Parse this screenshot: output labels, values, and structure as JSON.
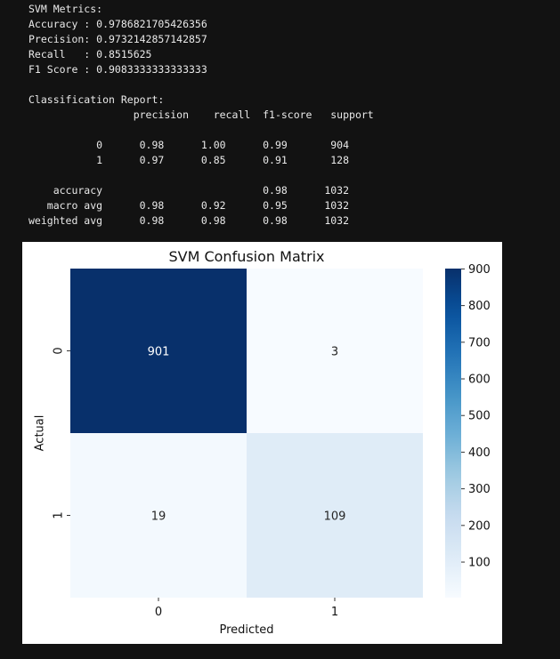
{
  "output": {
    "metrics_header": "SVM Metrics:",
    "metrics": [
      {
        "label": "Accuracy ",
        "value": "0.9786821705426356"
      },
      {
        "label": "Precision",
        "value": "0.9732142857142857"
      },
      {
        "label": "Recall   ",
        "value": "0.8515625"
      },
      {
        "label": "F1 Score ",
        "value": "0.9083333333333333"
      }
    ],
    "report_header": "Classification Report:",
    "report_columns": [
      "precision",
      "recall",
      "f1-score",
      "support"
    ],
    "report_rows": [
      {
        "label": "0",
        "precision": "0.98",
        "recall": "1.00",
        "f1": "0.99",
        "support": "904"
      },
      {
        "label": "1",
        "precision": "0.97",
        "recall": "0.85",
        "f1": "0.91",
        "support": "128"
      }
    ],
    "report_summary": [
      {
        "label": "accuracy",
        "precision": "",
        "recall": "",
        "f1": "0.98",
        "support": "1032"
      },
      {
        "label": "macro avg",
        "precision": "0.98",
        "recall": "0.92",
        "f1": "0.95",
        "support": "1032"
      },
      {
        "label": "weighted avg",
        "precision": "0.98",
        "recall": "0.98",
        "f1": "0.98",
        "support": "1032"
      }
    ]
  },
  "chart_data": {
    "type": "heatmap",
    "title": "SVM Confusion Matrix",
    "xlabel": "Predicted",
    "ylabel": "Actual",
    "x_categories": [
      "0",
      "1"
    ],
    "y_categories": [
      "0",
      "1"
    ],
    "values": [
      [
        901,
        3
      ],
      [
        19,
        109
      ]
    ],
    "colormap": "Blues",
    "colorbar_ticks": [
      100,
      200,
      300,
      400,
      500,
      600,
      700,
      800,
      900
    ],
    "colorbar_range": [
      3,
      901
    ]
  }
}
